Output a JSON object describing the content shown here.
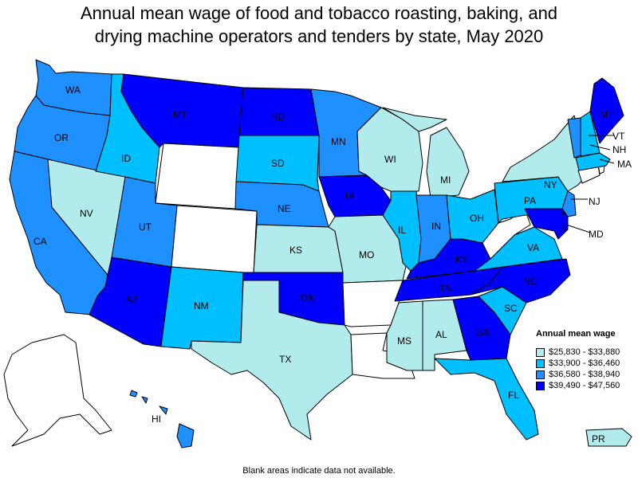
{
  "title_line1": "Annual mean wage of food and tobacco roasting, baking, and",
  "title_line2": "drying machine operators and tenders by state, May 2020",
  "legend": {
    "title": "Annual mean wage",
    "items": [
      {
        "label": "$25,830 - $33,880",
        "color": "#b2ebeb"
      },
      {
        "label": "$33,900 - $36,460",
        "color": "#00bfff"
      },
      {
        "label": "$36,580 - $38,940",
        "color": "#1e90ff"
      },
      {
        "label": "$39,490 - $47,560",
        "color": "#0000ff"
      }
    ]
  },
  "footnote": "Blank areas indicate data not available.",
  "states": {
    "WA": 3,
    "OR": 3,
    "CA": 3,
    "NV": 1,
    "ID": 2,
    "MT": 4,
    "WY": 0,
    "UT": 3,
    "AZ": 4,
    "CO": 0,
    "NM": 2,
    "ND": 4,
    "SD": 2,
    "NE": 3,
    "KS": 1,
    "OK": 4,
    "TX": 1,
    "MN": 3,
    "IA": 4,
    "MO": 1,
    "AR": 0,
    "LA": 0,
    "WI": 1,
    "IL": 2,
    "MS": 1,
    "MI": 1,
    "IN": 3,
    "KY": 4,
    "TN": 4,
    "AL": 1,
    "OH": 2,
    "GA": 4,
    "FL": 2,
    "SC": 2,
    "NC": 4,
    "VA": 2,
    "WV": 0,
    "PA": 2,
    "NY": 1,
    "ME": 4,
    "VT": 3,
    "NH": 2,
    "MA": 2,
    "NJ": 3,
    "MD": 4,
    "DE": 4,
    "CT": 0,
    "RI": 0,
    "AK": 0,
    "HI": 3,
    "PR": 1
  },
  "labels": {
    "WA": "WA",
    "OR": "OR",
    "CA": "CA",
    "NV": "NV",
    "ID": "ID",
    "MT": "MT",
    "UT": "UT",
    "AZ": "AZ",
    "NM": "NM",
    "ND": "ND",
    "SD": "SD",
    "NE": "NE",
    "KS": "KS",
    "OK": "OK",
    "TX": "TX",
    "MN": "MN",
    "IA": "IA",
    "MO": "MO",
    "WI": "WI",
    "IL": "IL",
    "MS": "MS",
    "MI": "MI",
    "IN": "IN",
    "KY": "KY",
    "TN": "TN",
    "AL": "AL",
    "OH": "OH",
    "GA": "GA",
    "FL": "FL",
    "SC": "SC",
    "NC": "NC",
    "VA": "VA",
    "PA": "PA",
    "NY": "NY",
    "ME": "ME",
    "VT": "VT",
    "NH": "NH",
    "MA": "MA",
    "NJ": "NJ",
    "MD": "MD",
    "HI": "HI",
    "PR": "PR"
  }
}
